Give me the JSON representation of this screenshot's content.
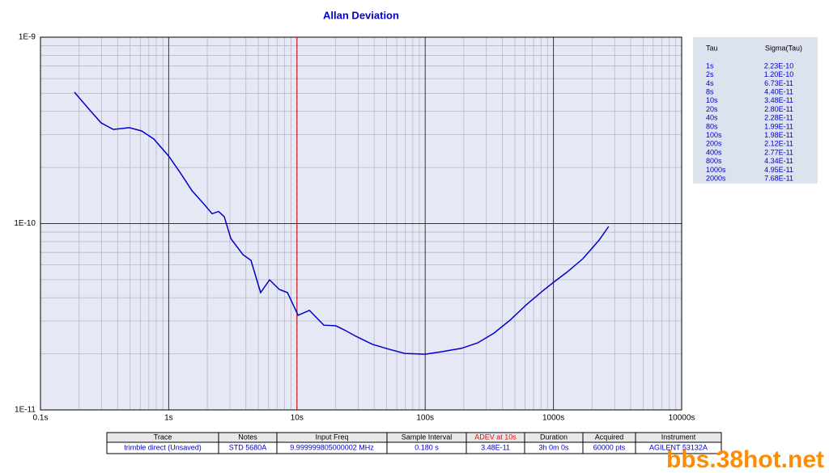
{
  "chart_data": {
    "type": "line",
    "title": "Allan Deviation",
    "color": "#0000cc",
    "xlog": true,
    "ylog": true,
    "grid": true,
    "x": [
      0.184,
      0.239,
      0.297,
      0.37,
      0.494,
      0.615,
      0.766,
      1.0,
      1.22,
      1.52,
      1.83,
      2.18,
      2.45,
      2.71,
      3.05,
      3.79,
      4.38,
      5.21,
      6.12,
      7.28,
      8.43,
      10.2,
      12.5,
      16.2,
      20.1,
      23.3,
      29.0,
      38.7,
      51.9,
      69.3,
      99.8,
      133,
      192,
      256,
      343,
      459,
      614,
      821,
      1007,
      1270,
      1700,
      2270,
      2700
    ],
    "values": [
      5.07e-10,
      4.11e-10,
      3.47e-10,
      3.2e-10,
      3.27e-10,
      3.14e-10,
      2.84e-10,
      2.3e-10,
      1.89e-10,
      1.5e-10,
      1.3e-10,
      1.13e-10,
      1.16e-10,
      1.09e-10,
      8.31e-11,
      6.81e-11,
      6.35e-11,
      4.26e-11,
      4.99e-11,
      4.43e-11,
      4.26e-11,
      3.22e-11,
      3.42e-11,
      2.85e-11,
      2.83e-11,
      2.69e-11,
      2.48e-11,
      2.25e-11,
      2.12e-11,
      2.01e-11,
      1.99e-11,
      2.05e-11,
      2.14e-11,
      2.29e-11,
      2.58e-11,
      3.03e-11,
      3.66e-11,
      4.34e-11,
      4.85e-11,
      5.47e-11,
      6.48e-11,
      8.15e-11,
      9.66e-11
    ],
    "xlim": [
      0.1,
      10000
    ],
    "ylim": [
      1e-11,
      1e-09
    ],
    "xticks": [
      {
        "value": 0.1,
        "label": "0.1s"
      },
      {
        "value": 1,
        "label": "1s"
      },
      {
        "value": 10,
        "label": "10s"
      },
      {
        "value": 100,
        "label": "100s"
      },
      {
        "value": 1000,
        "label": "1000s"
      },
      {
        "value": 10000,
        "label": "10000s"
      }
    ],
    "yticks": [
      {
        "value": 1e-11,
        "label": "1E-11"
      },
      {
        "value": 1e-10,
        "label": "1E-10"
      },
      {
        "value": 1e-09,
        "label": "1E-9"
      }
    ],
    "xminorticks": [
      0.2,
      0.3,
      0.4,
      0.5,
      0.6,
      0.7,
      0.8,
      0.9,
      2,
      3,
      4,
      5,
      6,
      7,
      8,
      9,
      20,
      30,
      40,
      50,
      60,
      70,
      80,
      90,
      200,
      300,
      400,
      500,
      600,
      700,
      800,
      900,
      2000,
      3000,
      4000,
      5000,
      6000,
      7000,
      8000,
      9000
    ],
    "yminorticks": [
      2e-11,
      3e-11,
      4e-11,
      5e-11,
      6e-11,
      7e-11,
      8e-11,
      9e-11,
      2e-10,
      3e-10,
      4e-10,
      5e-10,
      6e-10,
      7e-10,
      8e-10,
      9e-10
    ],
    "marker_x": 10,
    "marker_color": "#ff0000"
  },
  "side_table": {
    "headers": [
      "Tau",
      "Sigma(Tau)"
    ],
    "rows": [
      [
        "1s",
        "2.23E-10"
      ],
      [
        "2s",
        "1.20E-10"
      ],
      [
        "4s",
        "6.73E-11"
      ],
      [
        "8s",
        "4.40E-11"
      ],
      [
        "10s",
        "3.48E-11"
      ],
      [
        "20s",
        "2.80E-11"
      ],
      [
        "40s",
        "2.28E-11"
      ],
      [
        "80s",
        "1.99E-11"
      ],
      [
        "100s",
        "1.98E-11"
      ],
      [
        "200s",
        "2.12E-11"
      ],
      [
        "400s",
        "2.77E-11"
      ],
      [
        "800s",
        "4.34E-11"
      ],
      [
        "1000s",
        "4.95E-11"
      ],
      [
        "2000s",
        "7.68E-11"
      ]
    ]
  },
  "info_table": {
    "headers": [
      "Trace",
      "Notes",
      "Input Freq",
      "Sample Interval",
      "ADEV at 10s",
      "Duration",
      "Acquired",
      "Instrument"
    ],
    "row": [
      "trimble direct (Unsaved)",
      "STD 5680A",
      "9.999999805000002 MHz",
      "0.180 s",
      "3.48E-11",
      "3h 0m 0s",
      "60000 pts",
      "AGILENT 53132A"
    ]
  },
  "watermark": "bbs.38hot.net"
}
